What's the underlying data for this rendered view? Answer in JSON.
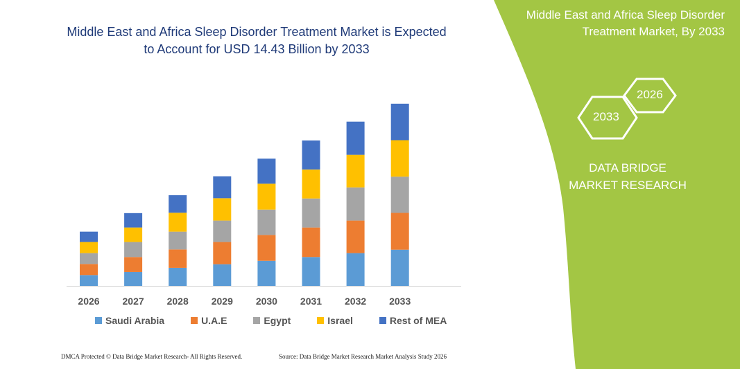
{
  "title": "Middle East and Africa Sleep Disorder Treatment Market is Expected to Account for USD 14.43 Billion by 2033",
  "side_panel": {
    "title": "Middle East and Africa Sleep Disorder Treatment Market, By 2033",
    "hex_start": "2026",
    "hex_end": "2033",
    "brand": "DATA BRIDGE MARKET RESEARCH",
    "color": "#a3c644"
  },
  "footer": {
    "left": "DMCA Protected © Data Bridge Market Research-  All Rights Reserved.",
    "right": "Source: Data Bridge Market Research  Market Analysis Study 2026"
  },
  "chart_data": {
    "type": "bar",
    "stacked": true,
    "title": "Middle East and Africa Sleep Disorder Treatment Market is Expected to Account for USD 14.43 Billion by 2033",
    "xlabel": "",
    "ylabel": "",
    "ylim": [
      0,
      14.43
    ],
    "grid": false,
    "legend": "bottom",
    "categories": [
      "2026",
      "2027",
      "2028",
      "2029",
      "2030",
      "2031",
      "2032",
      "2033"
    ],
    "series": [
      {
        "name": "Saudi Arabia",
        "color": "#5b9bd5",
        "values": [
          0.86,
          1.1,
          1.43,
          1.72,
          1.99,
          2.29,
          2.6,
          2.87
        ]
      },
      {
        "name": "U.A.E",
        "color": "#ed7d31",
        "values": [
          0.88,
          1.19,
          1.46,
          1.76,
          2.05,
          2.34,
          2.58,
          2.92
        ]
      },
      {
        "name": "Egypt",
        "color": "#a5a5a5",
        "values": [
          0.86,
          1.19,
          1.41,
          1.7,
          2.01,
          2.3,
          2.63,
          2.87
        ]
      },
      {
        "name": "Israel",
        "color": "#ffc000",
        "values": [
          0.88,
          1.15,
          1.5,
          1.77,
          2.05,
          2.3,
          2.58,
          2.89
        ]
      },
      {
        "name": "Rest of MEA",
        "color": "#4472c4",
        "values": [
          0.82,
          1.14,
          1.39,
          1.74,
          1.99,
          2.3,
          2.63,
          2.89
        ]
      }
    ]
  }
}
